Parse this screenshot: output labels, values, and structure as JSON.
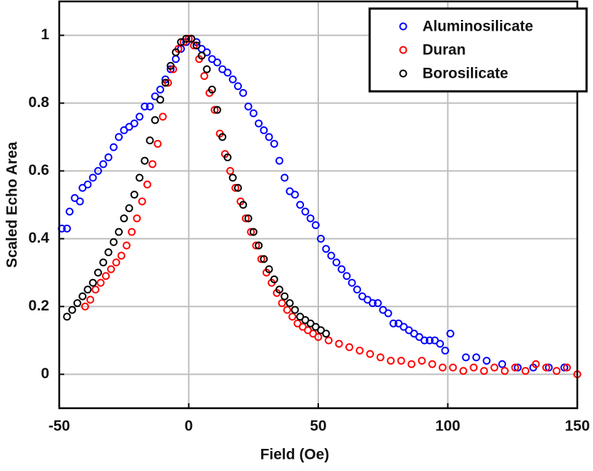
{
  "chart_data": {
    "type": "scatter",
    "xlabel": "Field (Oe)",
    "ylabel": "Scaled Echo Area",
    "xlim": [
      -50,
      150
    ],
    "ylim": [
      -0.1,
      1.1
    ],
    "xticks": [
      -50,
      0,
      50,
      100,
      150
    ],
    "yticks": [
      0,
      0.2,
      0.4,
      0.6,
      0.8,
      1
    ],
    "grid": true,
    "legend": "upper right",
    "series": [
      {
        "name": "Aluminosilicate",
        "color": "#0000ff",
        "x": [
          -49,
          -47,
          -46,
          -44,
          -42,
          -41,
          -39,
          -37,
          -35,
          -33,
          -31,
          -29,
          -27,
          -25,
          -23,
          -21,
          -19,
          -17,
          -15,
          -13,
          -11,
          -9,
          -7,
          -5,
          -3,
          -1,
          1,
          3,
          5,
          7,
          9,
          11,
          13,
          15,
          17,
          19,
          21,
          23,
          25,
          27,
          29,
          31,
          33,
          35,
          37,
          39,
          41,
          43,
          45,
          47,
          49,
          51,
          53,
          55,
          57,
          59,
          61,
          63,
          65,
          67,
          69,
          71,
          73,
          75,
          77,
          79,
          81,
          83,
          85,
          87,
          89,
          91,
          93,
          95,
          97,
          99,
          101,
          107,
          111,
          115,
          121,
          127,
          133,
          139,
          145
        ],
        "values": [
          0.43,
          0.43,
          0.48,
          0.52,
          0.51,
          0.55,
          0.56,
          0.58,
          0.6,
          0.62,
          0.64,
          0.67,
          0.7,
          0.72,
          0.73,
          0.74,
          0.76,
          0.79,
          0.79,
          0.82,
          0.84,
          0.87,
          0.9,
          0.93,
          0.96,
          0.98,
          0.99,
          0.98,
          0.96,
          0.95,
          0.93,
          0.92,
          0.9,
          0.89,
          0.87,
          0.85,
          0.83,
          0.79,
          0.77,
          0.74,
          0.72,
          0.7,
          0.68,
          0.63,
          0.58,
          0.54,
          0.53,
          0.5,
          0.48,
          0.46,
          0.44,
          0.4,
          0.37,
          0.35,
          0.33,
          0.31,
          0.29,
          0.27,
          0.25,
          0.23,
          0.22,
          0.21,
          0.21,
          0.19,
          0.18,
          0.15,
          0.15,
          0.14,
          0.13,
          0.12,
          0.11,
          0.1,
          0.1,
          0.1,
          0.09,
          0.07,
          0.12,
          0.05,
          0.05,
          0.04,
          0.03,
          0.02,
          0.02,
          0.02,
          0.02
        ]
      },
      {
        "name": "Duran",
        "color": "#ff0000",
        "x": [
          -40,
          -38,
          -36,
          -34,
          -32,
          -30,
          -28,
          -26,
          -24,
          -22,
          -20,
          -18,
          -16,
          -14,
          -12,
          -10,
          -8,
          -6,
          -4,
          -2,
          0,
          2,
          4,
          6,
          8,
          10,
          12,
          14,
          16,
          18,
          20,
          22,
          24,
          26,
          28,
          30,
          32,
          34,
          36,
          38,
          40,
          42,
          44,
          46,
          48,
          50,
          54,
          58,
          62,
          66,
          70,
          74,
          78,
          82,
          86,
          90,
          94,
          98,
          102,
          106,
          110,
          114,
          118,
          122,
          126,
          130,
          134,
          138,
          142,
          146,
          150
        ],
        "values": [
          0.2,
          0.22,
          0.25,
          0.27,
          0.29,
          0.31,
          0.33,
          0.35,
          0.38,
          0.42,
          0.46,
          0.51,
          0.56,
          0.62,
          0.68,
          0.76,
          0.86,
          0.9,
          0.96,
          0.98,
          0.99,
          0.97,
          0.93,
          0.88,
          0.83,
          0.78,
          0.71,
          0.65,
          0.6,
          0.55,
          0.51,
          0.46,
          0.42,
          0.38,
          0.34,
          0.3,
          0.27,
          0.24,
          0.21,
          0.19,
          0.17,
          0.15,
          0.14,
          0.13,
          0.12,
          0.11,
          0.1,
          0.09,
          0.08,
          0.07,
          0.06,
          0.05,
          0.04,
          0.04,
          0.03,
          0.04,
          0.03,
          0.02,
          0.02,
          0.01,
          0.02,
          0.01,
          0.02,
          0.01,
          0.02,
          0.01,
          0.03,
          0.02,
          0.01,
          0.02,
          0.0
        ]
      },
      {
        "name": "Borosilicate",
        "color": "#000000",
        "x": [
          -47,
          -45,
          -43,
          -41,
          -39,
          -37,
          -35,
          -33,
          -31,
          -29,
          -27,
          -25,
          -23,
          -21,
          -19,
          -17,
          -15,
          -13,
          -11,
          -9,
          -7,
          -5,
          -3,
          -1,
          1,
          3,
          5,
          7,
          9,
          11,
          13,
          15,
          17,
          19,
          21,
          23,
          25,
          27,
          29,
          31,
          33,
          35,
          37,
          39,
          41,
          43,
          45,
          47,
          49,
          51,
          53
        ],
        "values": [
          0.17,
          0.19,
          0.21,
          0.23,
          0.25,
          0.27,
          0.3,
          0.33,
          0.36,
          0.39,
          0.42,
          0.46,
          0.49,
          0.53,
          0.58,
          0.63,
          0.69,
          0.75,
          0.81,
          0.86,
          0.91,
          0.95,
          0.98,
          0.99,
          0.99,
          0.97,
          0.94,
          0.9,
          0.84,
          0.78,
          0.7,
          0.64,
          0.58,
          0.55,
          0.5,
          0.46,
          0.42,
          0.38,
          0.34,
          0.31,
          0.28,
          0.25,
          0.23,
          0.21,
          0.19,
          0.17,
          0.16,
          0.15,
          0.14,
          0.13,
          0.12
        ]
      }
    ]
  }
}
